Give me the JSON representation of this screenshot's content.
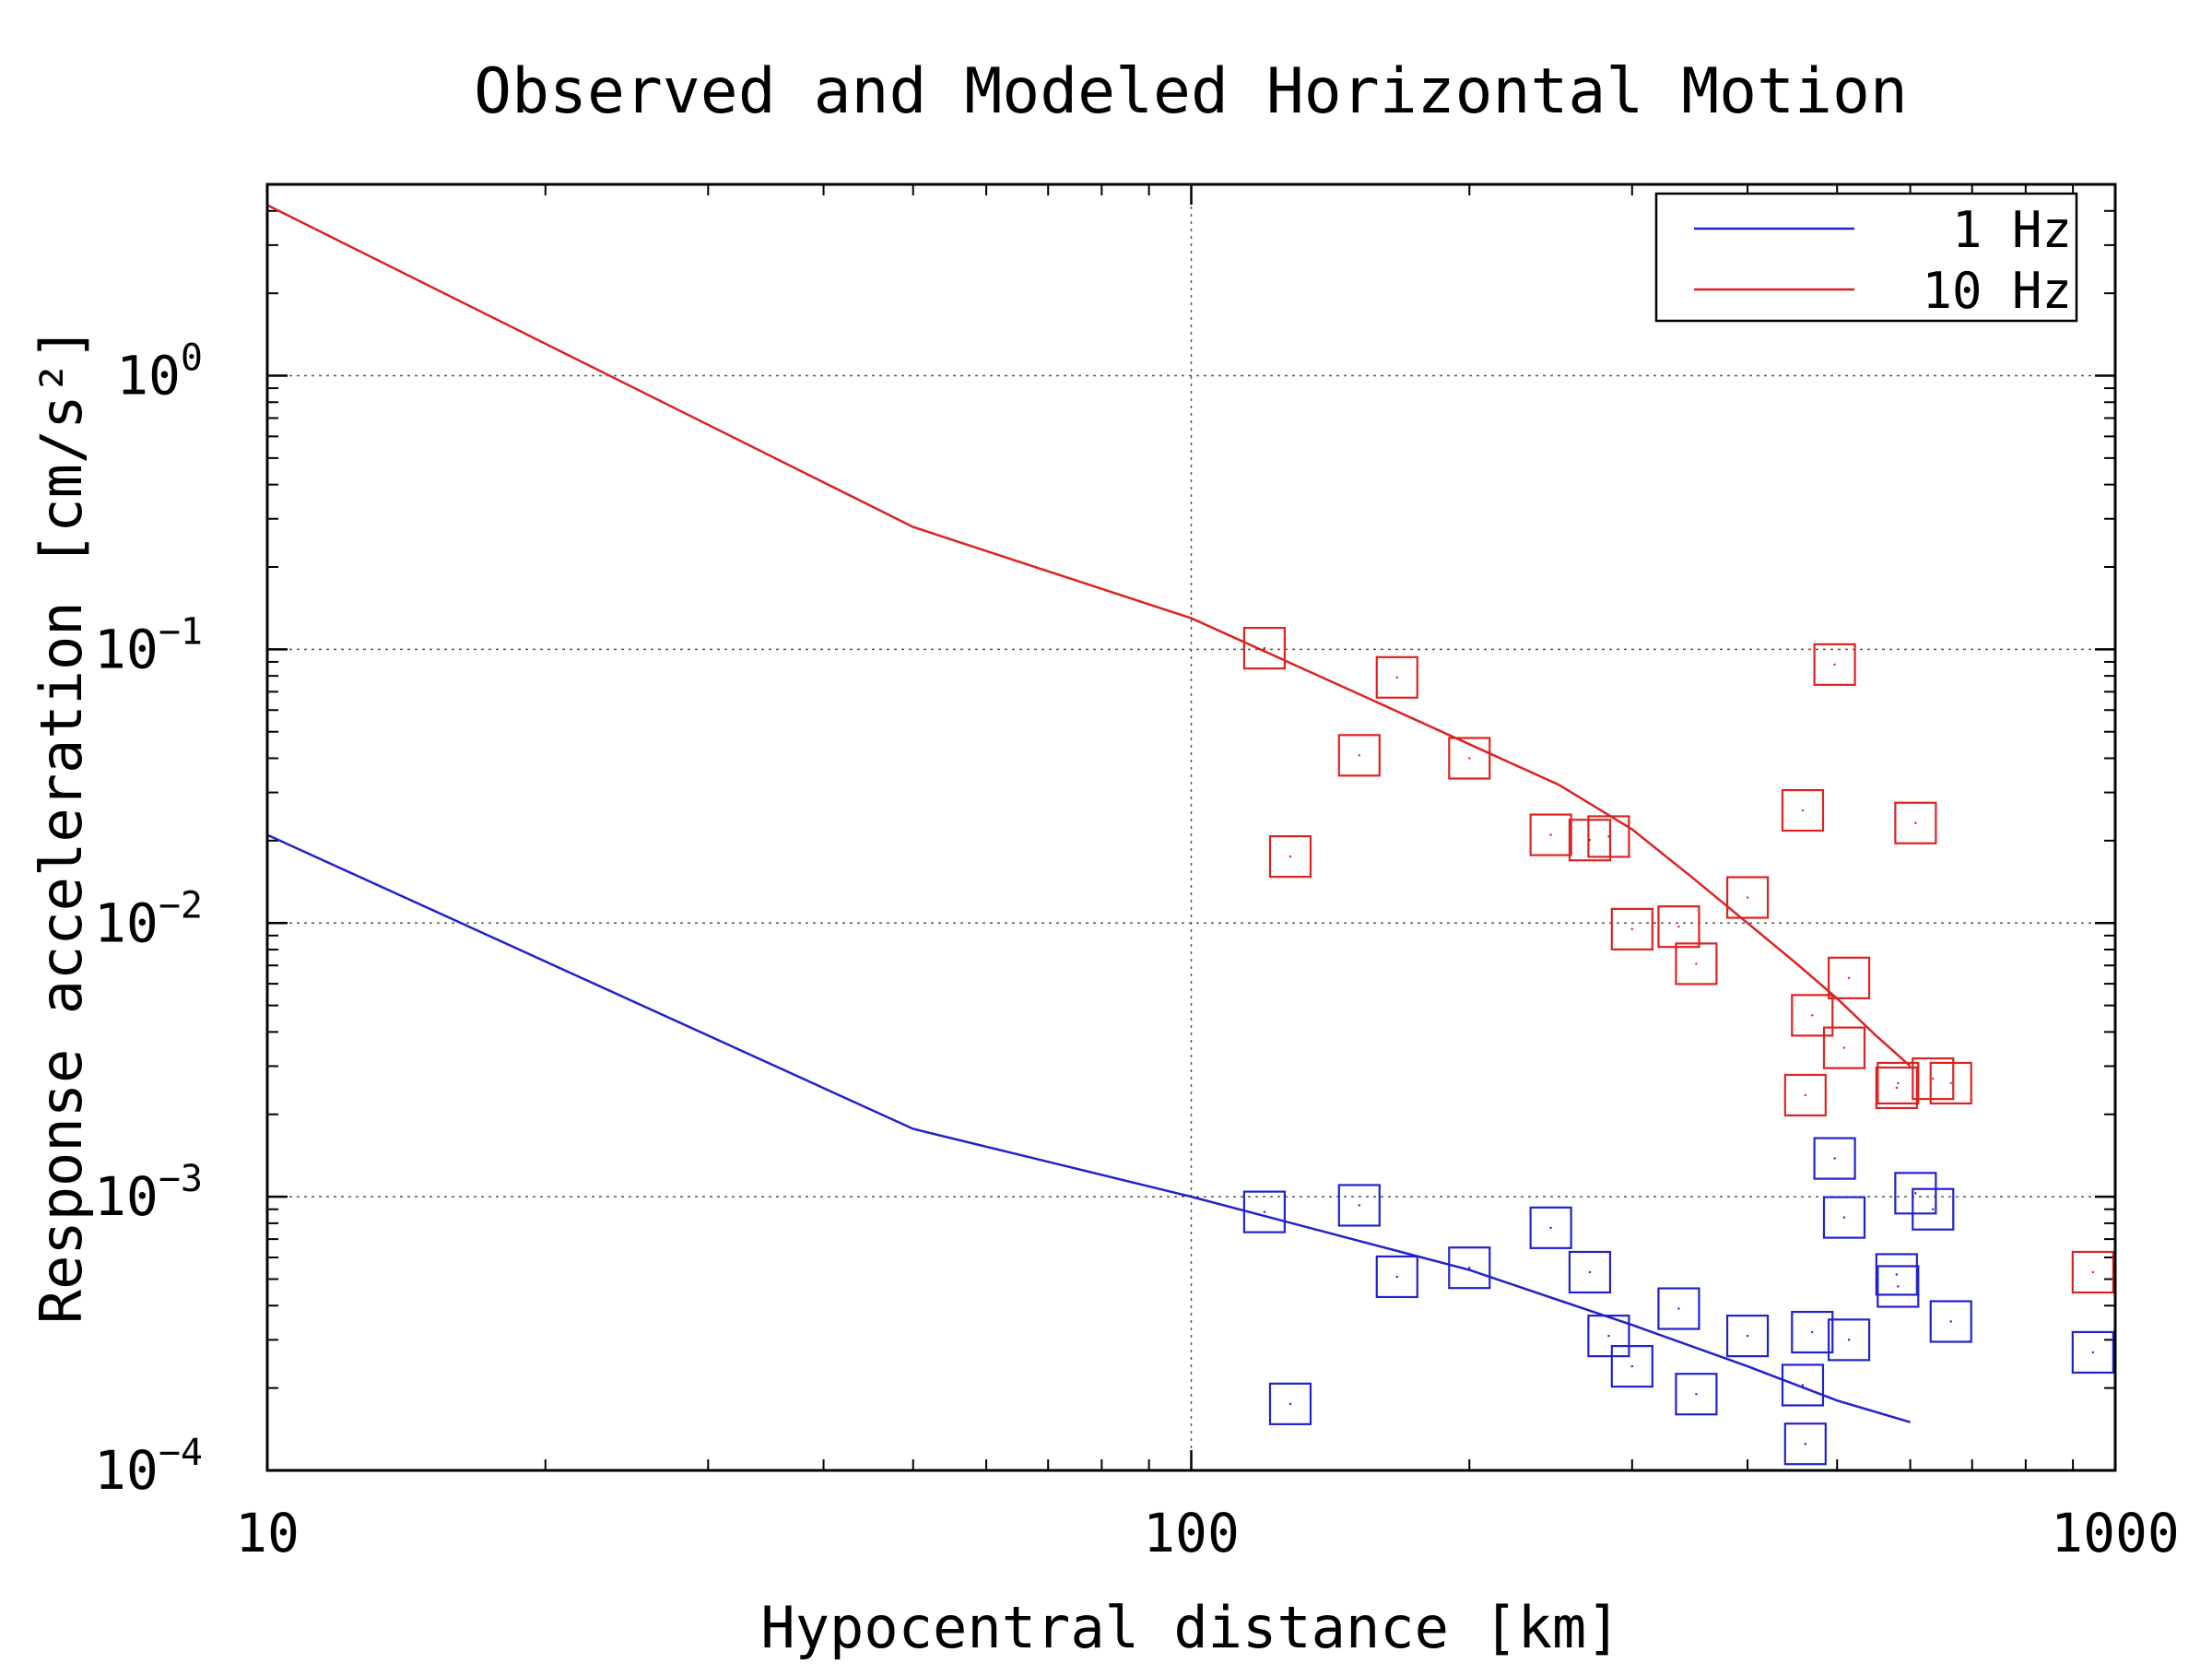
{
  "chart_data": {
    "type": "scatter",
    "title": "Observed and Modeled Horizontal Motion",
    "xlabel": "Hypocentral distance [km]",
    "ylabel": "Response acceleration [cm/s²]",
    "x_scale": "log",
    "y_scale": "log",
    "xlim": [
      10,
      1000
    ],
    "ylim": [
      0.0001,
      5
    ],
    "x_ticks": [
      {
        "value": 10,
        "label": "10"
      },
      {
        "value": 100,
        "label": "100"
      },
      {
        "value": 1000,
        "label": "1000"
      }
    ],
    "y_ticks": [
      {
        "value": 0.0001,
        "base": "10",
        "exp": "−4"
      },
      {
        "value": 0.001,
        "base": "10",
        "exp": "−3"
      },
      {
        "value": 0.01,
        "base": "10",
        "exp": "−2"
      },
      {
        "value": 0.1,
        "base": "10",
        "exp": "−1"
      },
      {
        "value": 1,
        "base": "10",
        "exp": "0"
      }
    ],
    "grid": true,
    "legend_position": "top-right",
    "series": [
      {
        "name": "1 Hz",
        "color": "#2222cc",
        "model_line": [
          [
            10,
            0.021
          ],
          [
            50,
            0.00177
          ],
          [
            100,
            0.001
          ],
          [
            200,
            0.00054
          ],
          [
            300,
            0.00034
          ],
          [
            400,
            0.00024
          ],
          [
            500,
            0.00018
          ],
          [
            600,
            0.00015
          ]
        ],
        "observed": [
          [
            120,
            0.00088
          ],
          [
            128,
            0.000175
          ],
          [
            152,
            0.00093
          ],
          [
            167,
            0.00051
          ],
          [
            200,
            0.00055
          ],
          [
            245,
            0.00077
          ],
          [
            270,
            0.00053
          ],
          [
            283,
            0.00031
          ],
          [
            300,
            0.00024
          ],
          [
            337,
            0.00039
          ],
          [
            352,
            0.00019
          ],
          [
            400,
            0.00031
          ],
          [
            459,
            0.000205
          ],
          [
            462,
            0.000125
          ],
          [
            470,
            0.00032
          ],
          [
            497,
            0.00138
          ],
          [
            509,
            0.00084
          ],
          [
            515,
            0.0003
          ],
          [
            580,
            0.00052
          ],
          [
            582,
            0.00047
          ],
          [
            608,
            0.00103
          ],
          [
            635,
            0.0009
          ],
          [
            664,
            0.00035
          ],
          [
            946,
            0.00027
          ]
        ]
      },
      {
        "name": "10 Hz",
        "color": "#dd2222",
        "model_line": [
          [
            10,
            4.2
          ],
          [
            50,
            0.28
          ],
          [
            100,
            0.13
          ],
          [
            150,
            0.07
          ],
          [
            200,
            0.045
          ],
          [
            250,
            0.032
          ],
          [
            300,
            0.022
          ],
          [
            350,
            0.0145
          ],
          [
            400,
            0.01
          ],
          [
            450,
            0.0072
          ],
          [
            500,
            0.0053
          ],
          [
            550,
            0.0039
          ],
          [
            600,
            0.003
          ]
        ],
        "observed": [
          [
            120,
            0.101
          ],
          [
            128,
            0.0175
          ],
          [
            152,
            0.041
          ],
          [
            167,
            0.079
          ],
          [
            200,
            0.04
          ],
          [
            245,
            0.021
          ],
          [
            270,
            0.0201
          ],
          [
            283,
            0.0207
          ],
          [
            300,
            0.0095
          ],
          [
            337,
            0.0097
          ],
          [
            352,
            0.0071
          ],
          [
            400,
            0.0124
          ],
          [
            459,
            0.0258
          ],
          [
            462,
            0.00235
          ],
          [
            470,
            0.0046
          ],
          [
            497,
            0.088
          ],
          [
            509,
            0.0035
          ],
          [
            515,
            0.0063
          ],
          [
            580,
            0.0025
          ],
          [
            582,
            0.0026
          ],
          [
            608,
            0.0232
          ],
          [
            635,
            0.0027
          ],
          [
            664,
            0.0026
          ],
          [
            946,
            0.00053
          ]
        ]
      }
    ]
  }
}
